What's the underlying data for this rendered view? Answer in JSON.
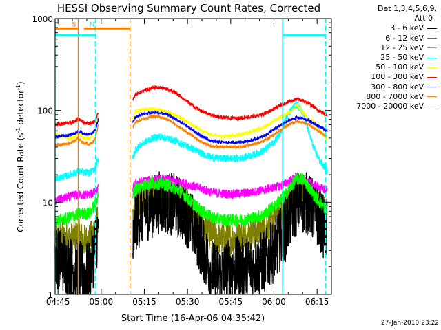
{
  "chart_data": {
    "type": "line",
    "title": "HESSI Observing Summary Count Rates, Corrected",
    "xlabel": "Start Time (16-Apr-06 04:35:42)",
    "ylabel_main": "Corrected Count Rate (s",
    "ylabel_sup1": "-1",
    "ylabel_mid": " detector",
    "ylabel_sup2": "-1",
    "ylabel_end": ")",
    "y_scale": "log",
    "ylim": [
      1,
      1000
    ],
    "xlim_minutes": [
      4,
      100
    ],
    "x_tick_minutes": [
      5,
      20,
      35,
      50,
      65,
      80,
      95
    ],
    "x_tick_labels": [
      "04:45",
      "05:00",
      "05:15",
      "05:30",
      "05:45",
      "06:00",
      "06:15"
    ],
    "y_ticks": [
      1,
      10,
      100,
      1000
    ],
    "y_tick_labels": [
      "1",
      "10",
      "100",
      "1000"
    ],
    "legend_header": [
      "Det 1,3,4,5,6,9,",
      "Att 0"
    ],
    "legend_position": "right, outside plot",
    "timestamp": "27-Jan-2010 23:22",
    "flags": [
      {
        "label": "S",
        "color": "#ff8000",
        "y": 780,
        "start": 4,
        "end": 12
      },
      {
        "label": "N",
        "color": "#ff8000",
        "y": 780,
        "start": 14,
        "end": 30
      },
      {
        "label": "",
        "color": "#00ffff",
        "y": 660,
        "start": 4,
        "end": 18
      },
      {
        "label": "",
        "color": "#00ffff",
        "y": 660,
        "start": 83,
        "end": 98
      }
    ],
    "vlines": [
      {
        "x": 4,
        "color": "#00ffff",
        "style": "solid"
      },
      {
        "x": 12,
        "color": "#ff8000",
        "style": "solid"
      },
      {
        "x": 18,
        "color": "#00ffff",
        "style": "dashed"
      },
      {
        "x": 30,
        "color": "#ff8000",
        "style": "dashed"
      },
      {
        "x": 83,
        "color": "#00ffff",
        "style": "solid"
      },
      {
        "x": 98,
        "color": "#00ffff",
        "style": "dashed"
      }
    ],
    "segments": [
      [
        4,
        19
      ],
      [
        31,
        98.5
      ]
    ],
    "x": [
      4,
      7,
      9,
      11,
      12,
      14,
      16,
      17,
      18,
      19,
      31,
      32,
      35,
      38,
      40,
      43,
      46,
      49,
      52,
      55,
      58,
      61,
      64,
      67,
      70,
      73,
      76,
      78,
      80,
      82,
      84,
      86,
      88,
      90,
      92,
      94,
      96,
      98.5
    ],
    "series": [
      {
        "name": "3 - 6 keV",
        "color": "#000000",
        "noise": 0.35,
        "values": [
          2.6,
          2.3,
          2.0,
          1.8,
          1.8,
          1.6,
          1.8,
          2.4,
          3.4,
          5.2,
          3.0,
          6.5,
          8.0,
          9.2,
          10,
          9.8,
          9.2,
          8.0,
          5.5,
          3.3,
          1.9,
          1.6,
          1.8,
          1.9,
          1.9,
          2.0,
          2.2,
          2.5,
          3.0,
          3.8,
          5.0,
          7.5,
          9.5,
          10,
          9.5,
          8.0,
          6.5,
          4.5
        ]
      },
      {
        "name": "6 - 12 keV",
        "color": "#ff00ff",
        "noise": 0.05,
        "values": [
          10.5,
          11,
          11.5,
          12,
          12,
          12,
          12.2,
          12.5,
          13,
          14,
          14,
          16,
          17,
          17.5,
          18,
          17.5,
          16.8,
          16,
          15,
          14,
          13,
          12.5,
          12.3,
          12.4,
          12.6,
          13,
          13.5,
          14,
          14.5,
          15,
          16,
          17.5,
          19,
          18,
          16.5,
          15.5,
          14.5,
          13.5
        ]
      },
      {
        "name": "12 - 25 keV",
        "color": "#00ff00",
        "noise": 0.07,
        "values": [
          6.3,
          6.5,
          6.8,
          7.2,
          7.5,
          7.5,
          7.6,
          8.5,
          10,
          12,
          12,
          14,
          15.5,
          16,
          16,
          15.5,
          14,
          12,
          9.5,
          8,
          7,
          6.5,
          6.4,
          6.4,
          6.5,
          6.8,
          7.2,
          8,
          9,
          10.5,
          12,
          15,
          18,
          18,
          15,
          12,
          10,
          8
        ]
      },
      {
        "name": "25 - 50 keV",
        "color": "#00ffff",
        "noise": 0.04,
        "values": [
          18,
          19,
          20,
          21,
          22,
          21,
          21,
          22,
          24,
          30,
          30,
          38,
          45,
          50,
          52,
          50,
          46,
          42,
          38,
          34,
          31,
          30,
          30,
          30,
          31,
          33,
          36,
          40,
          45,
          55,
          80,
          100,
          115,
          95,
          60,
          38,
          28,
          22
        ]
      },
      {
        "name": "50 - 100 keV",
        "color": "#ffff00",
        "noise": 0.02,
        "values": [
          55,
          52,
          50,
          52,
          57,
          50,
          50,
          55,
          65,
          88,
          80,
          98,
          102,
          104,
          102,
          96,
          88,
          78,
          68,
          60,
          55,
          53,
          53,
          54,
          56,
          60,
          65,
          70,
          78,
          84,
          90,
          98,
          115,
          95,
          82,
          75,
          60,
          48
        ]
      },
      {
        "name": "100 - 300 keV",
        "color": "#ff0000",
        "noise": 0.02,
        "values": [
          70,
          72,
          73,
          76,
          82,
          74,
          72,
          74,
          78,
          95,
          130,
          150,
          165,
          175,
          178,
          170,
          155,
          132,
          112,
          98,
          90,
          85,
          83,
          82,
          84,
          86,
          90,
          96,
          104,
          112,
          120,
          127,
          132,
          128,
          120,
          108,
          98,
          88
        ]
      },
      {
        "name": "300 - 800 keV",
        "color": "#0000ff",
        "noise": 0.015,
        "values": [
          52,
          53,
          54,
          56,
          60,
          55,
          55,
          57,
          62,
          80,
          75,
          85,
          92,
          95,
          94,
          90,
          80,
          70,
          60,
          52,
          47,
          45,
          45,
          45,
          46,
          48,
          52,
          56,
          62,
          68,
          74,
          80,
          84,
          82,
          78,
          72,
          66,
          60
        ]
      },
      {
        "name": "800 - 7000 keV",
        "color": "#ff8000",
        "noise": 0.015,
        "values": [
          42,
          43,
          44,
          47,
          50,
          44,
          43,
          45,
          50,
          70,
          65,
          75,
          82,
          86,
          85,
          80,
          70,
          60,
          52,
          45,
          41,
          40,
          40,
          40,
          41,
          43,
          46,
          50,
          55,
          60,
          66,
          72,
          76,
          74,
          70,
          64,
          58,
          52
        ]
      },
      {
        "name": "7000 - 20000 keV",
        "color": "#808000",
        "noise": 0.18,
        "values": [
          4.2,
          4.0,
          4.0,
          4.1,
          4.5,
          3.8,
          4.0,
          4.5,
          5.5,
          7.0,
          5.5,
          9.0,
          11.5,
          12.5,
          12.8,
          12.3,
          11.5,
          10,
          8,
          6,
          4.5,
          4.0,
          4.0,
          4.1,
          4.3,
          4.6,
          5.0,
          5.8,
          6.8,
          8,
          9.5,
          11,
          12.5,
          13,
          12,
          10.5,
          9,
          7.5
        ]
      }
    ]
  }
}
